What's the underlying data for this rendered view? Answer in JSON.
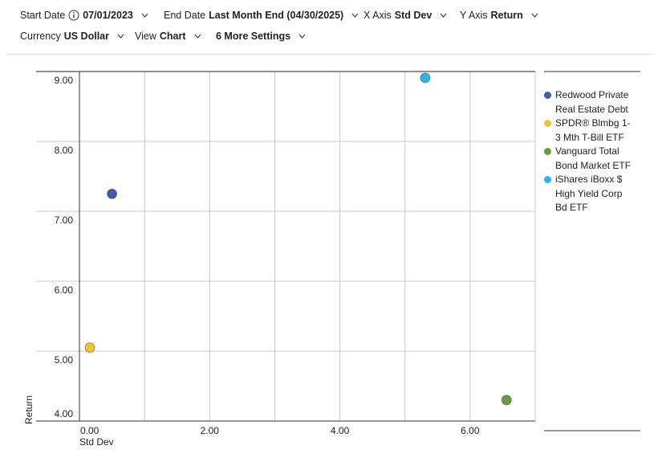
{
  "settings": [
    {
      "label": "Start Date",
      "value": "07/01/2023",
      "info": true
    },
    {
      "label": "End Date",
      "value": "Last Month End (04/30/2025)"
    },
    {
      "label": "X Axis",
      "value": "Std Dev"
    },
    {
      "label": "Y Axis",
      "value": "Return"
    },
    {
      "label": "Currency",
      "value": "US Dollar"
    },
    {
      "label": "View",
      "value": "Chart"
    }
  ],
  "more_settings": "6 More Settings",
  "chart_data": {
    "type": "scatter",
    "x_label": "Std Dev",
    "y_label": "Return",
    "xlim": [
      0,
      7
    ],
    "ylim": [
      4,
      9
    ],
    "xticks": [
      {
        "value": 0,
        "label": "0.00"
      },
      {
        "value": 2,
        "label": "2.00"
      },
      {
        "value": 4,
        "label": "4.00"
      },
      {
        "value": 6,
        "label": "6.00"
      }
    ],
    "yticks": [
      {
        "value": 4,
        "label": "4.00"
      },
      {
        "value": 5,
        "label": "5.00"
      },
      {
        "value": 6,
        "label": "6.00"
      },
      {
        "value": 7,
        "label": "7.00"
      },
      {
        "value": 8,
        "label": "8.00"
      },
      {
        "value": 9,
        "label": "9.00"
      }
    ],
    "grid": true,
    "legend": "right",
    "series": [
      {
        "name": "Redwood Private Real Estate Debt",
        "color": "#3e5fa8",
        "x": [
          0.5
        ],
        "values": [
          7.25
        ]
      },
      {
        "name": "SPDR® Blmbg 1-3 Mth T-Bill ETF",
        "color": "#f2c42c",
        "x": [
          0.16
        ],
        "values": [
          5.05
        ]
      },
      {
        "name": "Vanguard Total Bond Market ETF",
        "color": "#6a9a3e",
        "x": [
          6.56
        ],
        "values": [
          4.3
        ]
      },
      {
        "name": "iShares iBoxx $ High Yield Corp Bd ETF",
        "color": "#2bb5e8",
        "x": [
          5.31
        ],
        "values": [
          8.91
        ]
      }
    ]
  }
}
